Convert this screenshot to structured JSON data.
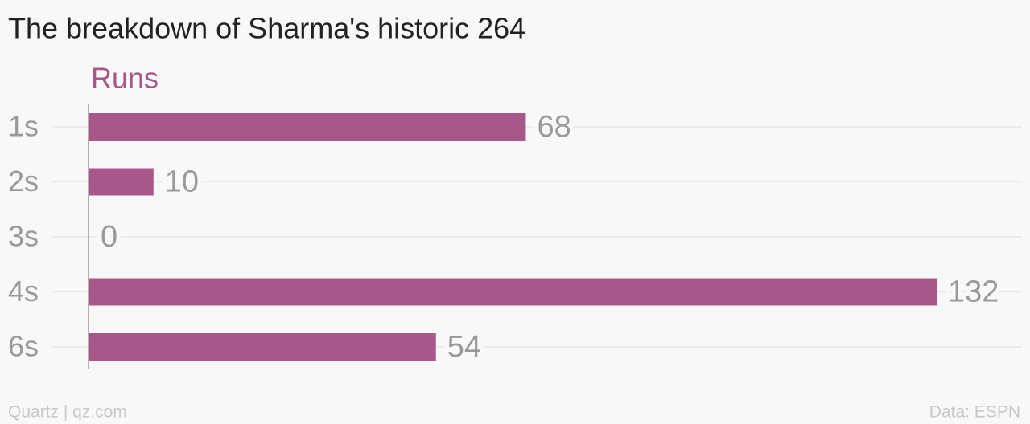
{
  "chart_data": {
    "type": "bar",
    "orientation": "horizontal",
    "title": "The breakdown of Sharma's historic 264",
    "value_axis_label": "Runs",
    "categories": [
      "1s",
      "2s",
      "3s",
      "4s",
      "6s"
    ],
    "values": [
      68,
      10,
      0,
      132,
      54
    ],
    "color": "#a8578a",
    "source_left": "Quartz | qz.com",
    "source_right": "Data: ESPN"
  }
}
